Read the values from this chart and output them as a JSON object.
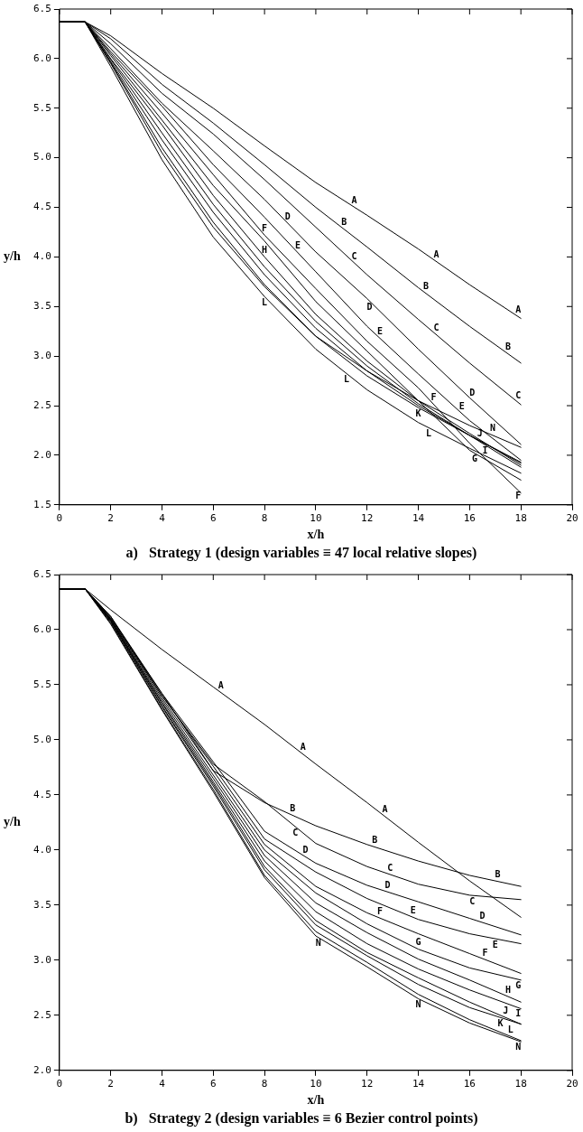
{
  "chart_data": [
    {
      "type": "line",
      "title": "a)   Strategy 1 (design variables ≡ 47 local relative slopes)",
      "xlabel": "x/h",
      "ylabel": "y/h",
      "x": [
        0,
        1,
        2,
        4,
        6,
        8,
        10,
        12,
        14,
        16,
        18
      ],
      "xlim": [
        0,
        20
      ],
      "xticks": [
        0,
        2,
        4,
        6,
        8,
        10,
        12,
        14,
        16,
        18,
        20
      ],
      "ylim": [
        1.5,
        6.5
      ],
      "yticks": [
        1.5,
        {
          "value": 2,
          "label": "2.0"
        },
        2.5,
        {
          "value": 3,
          "label": "3.0"
        },
        3.5,
        {
          "value": 4,
          "label": "4.0"
        },
        4.5,
        {
          "value": 5,
          "label": "5.0"
        },
        5.5,
        {
          "value": 6,
          "label": "6.0"
        },
        6.5
      ],
      "grid": false,
      "legend": false,
      "marker": "none",
      "line_style": "solid",
      "series": [
        {
          "name": "A",
          "color": "#000000",
          "values": [
            6.37,
            6.37,
            6.23,
            5.85,
            5.5,
            5.12,
            4.75,
            4.42,
            4.08,
            3.72,
            3.38
          ]
        },
        {
          "name": "B",
          "color": "#000000",
          "values": [
            6.37,
            6.37,
            6.2,
            5.74,
            5.35,
            4.93,
            4.5,
            4.1,
            3.69,
            3.3,
            2.93
          ]
        },
        {
          "name": "C",
          "color": "#000000",
          "values": [
            6.37,
            6.37,
            6.15,
            5.65,
            5.24,
            4.78,
            4.3,
            3.82,
            3.37,
            2.93,
            2.51
          ]
        },
        {
          "name": "D",
          "color": "#000000",
          "values": [
            6.37,
            6.37,
            6.1,
            5.55,
            5.07,
            4.58,
            4.05,
            3.58,
            3.07,
            2.58,
            2.11
          ]
        },
        {
          "name": "E",
          "color": "#000000",
          "values": [
            6.37,
            6.37,
            6.07,
            5.52,
            4.93,
            4.4,
            3.85,
            3.3,
            2.82,
            2.35,
            1.95
          ]
        },
        {
          "name": "F",
          "color": "#000000",
          "values": [
            6.37,
            6.37,
            6.05,
            5.45,
            4.83,
            4.22,
            3.68,
            3.15,
            2.68,
            2.12,
            1.62
          ]
        },
        {
          "name": "G",
          "color": "#000000",
          "values": [
            6.37,
            6.37,
            6.03,
            5.38,
            4.72,
            4.16,
            3.55,
            3.05,
            2.55,
            2.05,
            1.75
          ]
        },
        {
          "name": "H",
          "color": "#000000",
          "values": [
            6.37,
            6.37,
            6.0,
            5.33,
            4.62,
            4.0,
            3.42,
            2.95,
            2.55,
            2.22,
            1.9
          ]
        },
        {
          "name": "I",
          "color": "#000000",
          "values": [
            6.37,
            6.37,
            5.99,
            5.25,
            4.53,
            3.9,
            3.35,
            2.9,
            2.52,
            2.2,
            1.88
          ]
        },
        {
          "name": "J",
          "color": "#000000",
          "values": [
            6.37,
            6.37,
            5.97,
            5.18,
            4.45,
            3.82,
            3.28,
            2.85,
            2.5,
            2.2,
            1.93
          ]
        },
        {
          "name": "K",
          "color": "#000000",
          "values": [
            6.37,
            6.37,
            5.96,
            5.1,
            4.35,
            3.72,
            3.2,
            2.8,
            2.48,
            2.2,
            1.92
          ]
        },
        {
          "name": "L",
          "color": "#000000",
          "values": [
            6.37,
            6.37,
            5.92,
            4.98,
            4.2,
            3.6,
            3.07,
            2.66,
            2.33,
            2.07,
            1.82
          ]
        },
        {
          "name": "N",
          "color": "#000000",
          "values": [
            6.37,
            6.37,
            5.95,
            5.05,
            4.3,
            3.7,
            3.2,
            2.85,
            2.55,
            2.3,
            2.08
          ]
        }
      ]
    },
    {
      "type": "line",
      "title": "b)   Strategy 2 (design variables ≡ 6 Bezier control points)",
      "xlabel": "x/h",
      "ylabel": "y/h",
      "x": [
        0,
        1,
        2,
        4,
        6,
        8,
        10,
        12,
        14,
        16,
        18
      ],
      "xlim": [
        0,
        20
      ],
      "xticks": [
        0,
        2,
        4,
        6,
        8,
        10,
        12,
        14,
        16,
        18,
        20
      ],
      "ylim": [
        2,
        6.5
      ],
      "yticks": [
        {
          "value": 2,
          "label": "2.0"
        },
        2.5,
        {
          "value": 3,
          "label": "3.0"
        },
        3.5,
        {
          "value": 4,
          "label": "4.0"
        },
        4.5,
        {
          "value": 5,
          "label": "5.0"
        },
        5.5,
        {
          "value": 6,
          "label": "6.0"
        },
        6.5
      ],
      "grid": false,
      "legend": false,
      "marker": "none",
      "line_style": "solid",
      "series": [
        {
          "name": "A",
          "color": "#000000",
          "values": [
            6.37,
            6.37,
            6.18,
            5.82,
            5.48,
            5.14,
            4.78,
            4.43,
            4.07,
            3.72,
            3.39
          ]
        },
        {
          "name": "B",
          "color": "#000000",
          "values": [
            6.37,
            6.37,
            6.12,
            5.42,
            4.72,
            4.43,
            4.22,
            4.05,
            3.9,
            3.77,
            3.67
          ]
        },
        {
          "name": "C",
          "color": "#000000",
          "values": [
            6.37,
            6.37,
            6.12,
            5.4,
            4.78,
            4.44,
            4.06,
            3.85,
            3.69,
            3.59,
            3.55
          ]
        },
        {
          "name": "D",
          "color": "#000000",
          "values": [
            6.37,
            6.37,
            6.11,
            5.42,
            4.8,
            4.17,
            3.88,
            3.68,
            3.53,
            3.38,
            3.23
          ]
        },
        {
          "name": "E",
          "color": "#000000",
          "values": [
            6.37,
            6.37,
            6.1,
            5.4,
            4.76,
            4.1,
            3.8,
            3.56,
            3.37,
            3.24,
            3.15
          ]
        },
        {
          "name": "F",
          "color": "#000000",
          "values": [
            6.37,
            6.37,
            6.1,
            5.38,
            4.72,
            4.05,
            3.67,
            3.43,
            3.24,
            3.06,
            2.88
          ]
        },
        {
          "name": "G",
          "color": "#000000",
          "values": [
            6.37,
            6.37,
            6.09,
            5.36,
            4.68,
            4.0,
            3.61,
            3.33,
            3.1,
            2.93,
            2.82
          ]
        },
        {
          "name": "H",
          "color": "#000000",
          "values": [
            6.37,
            6.37,
            6.09,
            5.34,
            4.65,
            3.95,
            3.52,
            3.25,
            3.01,
            2.82,
            2.62
          ]
        },
        {
          "name": "I",
          "color": "#000000",
          "values": [
            6.37,
            6.37,
            6.08,
            5.33,
            4.62,
            3.9,
            3.44,
            3.15,
            2.92,
            2.73,
            2.56
          ]
        },
        {
          "name": "J",
          "color": "#000000",
          "values": [
            6.37,
            6.37,
            6.08,
            5.31,
            4.6,
            3.85,
            3.36,
            3.07,
            2.84,
            2.62,
            2.42
          ]
        },
        {
          "name": "K",
          "color": "#000000",
          "values": [
            6.37,
            6.37,
            6.07,
            5.3,
            4.58,
            3.82,
            3.32,
            3.04,
            2.78,
            2.57,
            2.42
          ]
        },
        {
          "name": "L",
          "color": "#000000",
          "values": [
            6.37,
            6.37,
            6.06,
            5.28,
            4.55,
            3.77,
            3.26,
            2.98,
            2.69,
            2.46,
            2.27
          ]
        },
        {
          "name": "N",
          "color": "#000000",
          "values": [
            6.37,
            6.37,
            6.05,
            5.27,
            4.53,
            3.75,
            3.22,
            2.94,
            2.65,
            2.43,
            2.26
          ]
        }
      ]
    }
  ]
}
